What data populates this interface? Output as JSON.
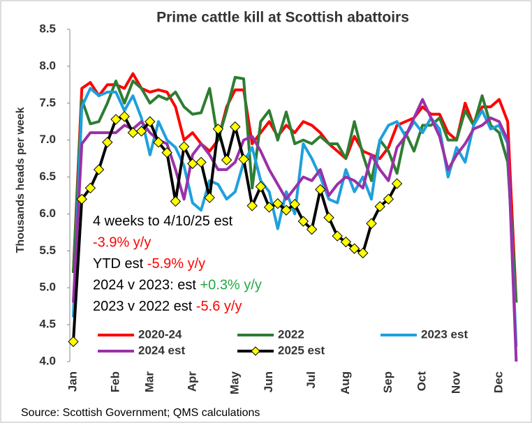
{
  "chart_data": {
    "type": "line",
    "title": "Prime cattle kill at Scottish abattoirs",
    "y_label": "Thousands heads per week",
    "source": "Source: Scottish Government; QMS calculations",
    "categories": [
      "Jan",
      null,
      null,
      null,
      null,
      "Feb",
      null,
      null,
      null,
      "Mar",
      null,
      null,
      null,
      null,
      "Apr",
      null,
      null,
      null,
      null,
      "May",
      null,
      null,
      null,
      "Jun",
      null,
      null,
      null,
      null,
      "Jul",
      null,
      null,
      null,
      "Aug",
      null,
      null,
      null,
      null,
      "Sep",
      null,
      null,
      null,
      "Oct",
      null,
      null,
      null,
      "Nov",
      null,
      null,
      null,
      null,
      "Dec",
      null,
      null
    ],
    "ylim": [
      4.0,
      8.5
    ],
    "yticks": [
      {
        "value": 4.0,
        "label": "4.0"
      },
      {
        "value": 4.5,
        "label": "4.5"
      },
      {
        "value": 5.0,
        "label": "5.0"
      },
      {
        "value": 5.5,
        "label": "5.5"
      },
      {
        "value": 6.0,
        "label": "6.0"
      },
      {
        "value": 6.5,
        "label": "6.5"
      },
      {
        "value": 7.0,
        "label": "7.0"
      },
      {
        "value": 7.5,
        "label": "7.5"
      },
      {
        "value": 8.0,
        "label": "8.0"
      },
      {
        "value": 8.5,
        "label": "8.5"
      }
    ],
    "series": [
      {
        "name": "2020-24",
        "color": "#ff0000",
        "values": [
          5.2,
          7.7,
          7.78,
          7.6,
          7.75,
          7.75,
          7.7,
          7.9,
          7.7,
          7.65,
          7.68,
          7.65,
          7.45,
          7.0,
          7.1,
          6.95,
          6.85,
          7.0,
          7.45,
          7.68,
          7.68,
          6.95,
          7.1,
          7.25,
          7.05,
          7.2,
          7.1,
          7.25,
          7.2,
          7.1,
          6.95,
          6.85,
          6.75,
          7.05,
          6.85,
          6.8,
          6.75,
          6.9,
          7.2,
          7.25,
          7.3,
          7.45,
          7.35,
          7.35,
          7.1,
          7.0,
          7.5,
          7.2,
          7.45,
          7.45,
          7.55,
          7.25,
          4.8
        ]
      },
      {
        "name": "2022",
        "color": "#2e7d32",
        "values": [
          5.2,
          7.55,
          7.22,
          7.25,
          7.5,
          7.8,
          7.5,
          7.8,
          7.7,
          7.5,
          7.6,
          7.55,
          7.65,
          7.45,
          7.35,
          7.37,
          7.7,
          7.0,
          7.4,
          7.85,
          7.83,
          6.35,
          7.25,
          7.4,
          7.0,
          7.38,
          6.95,
          7.0,
          6.95,
          7.05,
          6.95,
          6.95,
          6.75,
          7.25,
          6.8,
          6.45,
          7.0,
          6.85,
          6.55,
          7.1,
          6.85,
          7.2,
          7.2,
          7.3,
          7.0,
          7.0,
          7.4,
          7.2,
          7.6,
          7.2,
          7.1,
          6.7,
          4.8
        ]
      },
      {
        "name": "2023 est",
        "color": "#1ea0dc",
        "values": [
          4.6,
          7.45,
          7.7,
          7.6,
          7.65,
          7.65,
          7.4,
          7.6,
          7.3,
          6.8,
          7.25,
          7.0,
          6.9,
          6.65,
          6.15,
          6.05,
          6.45,
          6.4,
          6.2,
          6.3,
          6.7,
          6.9,
          6.45,
          6.3,
          5.8,
          6.3,
          6.0,
          6.95,
          6.75,
          6.5,
          6.2,
          6.15,
          6.6,
          6.3,
          6.5,
          6.2,
          7.0,
          7.2,
          7.25,
          7.05,
          7.25,
          7.1,
          7.3,
          7.15,
          6.5,
          6.9,
          6.7,
          7.2,
          7.4,
          7.15,
          7.2,
          6.95,
          4.2
        ]
      },
      {
        "name": "2024 est",
        "color": "#9b30a8",
        "values": [
          4.8,
          6.95,
          7.1,
          7.1,
          7.1,
          7.1,
          7.2,
          7.15,
          7.25,
          7.1,
          7.0,
          6.95,
          6.6,
          6.2,
          6.8,
          6.95,
          6.8,
          6.6,
          6.6,
          6.7,
          7.0,
          7.05,
          6.85,
          6.6,
          6.4,
          6.2,
          6.35,
          6.5,
          6.45,
          6.6,
          6.25,
          6.4,
          6.5,
          6.45,
          6.35,
          6.8,
          6.6,
          6.45,
          6.9,
          7.05,
          7.3,
          7.55,
          7.3,
          7.05,
          6.6,
          6.8,
          6.95,
          7.15,
          7.2,
          7.3,
          7.25,
          7.0,
          4.0
        ]
      },
      {
        "name": "2025 est",
        "color": "#000000",
        "marker_color": "#ffff00",
        "values": [
          4.27,
          6.2,
          6.35,
          6.6,
          6.97,
          7.28,
          7.32,
          7.1,
          7.12,
          7.25,
          6.97,
          6.83,
          6.17,
          6.91,
          6.68,
          6.7,
          6.22,
          7.15,
          6.73,
          7.18,
          6.74,
          6.11,
          6.37,
          6.09,
          6.14,
          6.05,
          6.13,
          5.9,
          5.79,
          6.33,
          5.95,
          5.7,
          5.62,
          5.53,
          5.47,
          5.87,
          6.1,
          6.2,
          6.41,
          null,
          null,
          null,
          null,
          null,
          null,
          null,
          null,
          null,
          null,
          null,
          null,
          null,
          null
        ]
      }
    ],
    "annotations": [
      [
        {
          "text": "4 weeks to 4/10/25 est",
          "color": "#000000"
        }
      ],
      [
        {
          "text": "-3.9% y/y",
          "color": "#ff0000"
        }
      ],
      [
        {
          "text": "YTD est ",
          "color": "#000000"
        },
        {
          "text": "-5.9% y/y",
          "color": "#ff0000"
        }
      ],
      [
        {
          "text": "2024 v 2023: est ",
          "color": "#000000"
        },
        {
          "text": "+0.3% y/y",
          "color": "#22a846"
        }
      ],
      [
        {
          "text": "2023 v 2022 est ",
          "color": "#000000"
        },
        {
          "text": "-5.6 y/y",
          "color": "#ff0000"
        }
      ]
    ]
  }
}
